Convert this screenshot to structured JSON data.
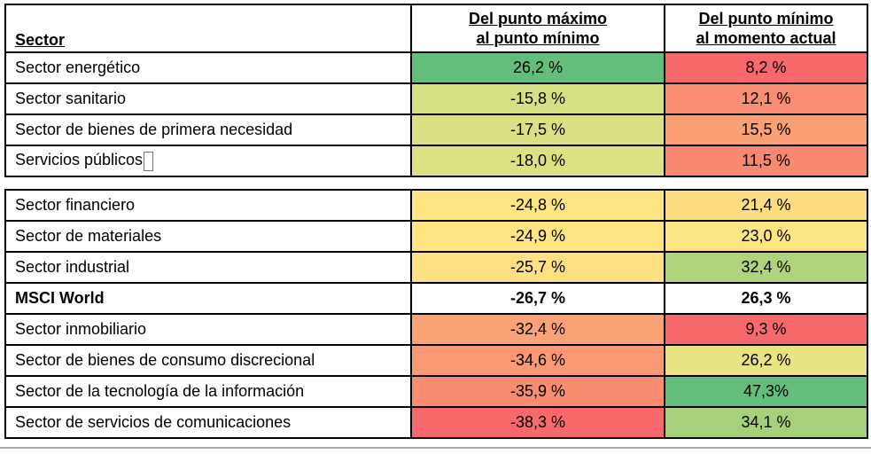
{
  "table": {
    "headers": {
      "sector": "Sector",
      "drawdown_line1": "Del punto máximo",
      "drawdown_line2": "al punto mínimo",
      "recovery_line1": "Del punto mínimo",
      "recovery_line2": "al momento actual"
    },
    "rows": [
      {
        "sector": "Sector energético",
        "drawdown": "26,2 %",
        "drawdown_bg": "#63BE7B",
        "recovery": "8,2 %",
        "recovery_bg": "#F8696B"
      },
      {
        "sector": "Sector sanitario",
        "drawdown": "-15,8 %",
        "drawdown_bg": "#D6DF81",
        "recovery": "12,1 %",
        "recovery_bg": "#FA8E72"
      },
      {
        "sector": "Sector de bienes de primera necesidad",
        "drawdown": "-17,5 %",
        "drawdown_bg": "#DBE082",
        "recovery": "15,5 %",
        "recovery_bg": "#FB9F75"
      },
      {
        "sector": "Servicios públicos",
        "drawdown": "-18,0 %",
        "drawdown_bg": "#DCE182",
        "recovery": "11,5 %",
        "recovery_bg": "#FA8770"
      },
      {
        "sector": "Sector financiero",
        "drawdown": "-24,8 %",
        "drawdown_bg": "#FEE482",
        "recovery": "21,4 %",
        "recovery_bg": "#FEDC80"
      },
      {
        "sector": "Sector de materiales",
        "drawdown": "-24,9 %",
        "drawdown_bg": "#FEE482",
        "recovery": "23,0 %",
        "recovery_bg": "#FEE583"
      },
      {
        "sector": "Sector industrial",
        "drawdown": "-25,7 %",
        "drawdown_bg": "#FEDF81",
        "recovery": "32,4 %",
        "recovery_bg": "#AFD47E"
      },
      {
        "sector": "MSCI World",
        "drawdown": "-26,7 %",
        "drawdown_bg": "#FFFFFF",
        "recovery": "26,3 %",
        "recovery_bg": "#FFFFFF"
      },
      {
        "sector": "Sector inmobiliario",
        "drawdown": "-32,4 %",
        "drawdown_bg": "#FBA376",
        "recovery": "9,3 %",
        "recovery_bg": "#F8696B"
      },
      {
        "sector": "Sector de bienes de consumo discrecional",
        "drawdown": "-34,6 %",
        "drawdown_bg": "#FA9974",
        "recovery": "26,2 %",
        "recovery_bg": "#E9E482"
      },
      {
        "sector": "Sector de la tecnología de la información",
        "drawdown": "-35,9 %",
        "drawdown_bg": "#F98B70",
        "recovery": "47,3%",
        "recovery_bg": "#63BE7B"
      },
      {
        "sector": "Sector de servicios de comunicaciones",
        "drawdown": "-38,3 %",
        "drawdown_bg": "#F8696B",
        "recovery": "34,1 %",
        "recovery_bg": "#A5D17D"
      }
    ]
  },
  "chart_data": {
    "type": "table",
    "title": "",
    "columns": [
      "Sector",
      "Del punto máximo al punto mínimo",
      "Del punto mínimo al momento actual"
    ],
    "rows": [
      [
        "Sector energético",
        26.2,
        8.2
      ],
      [
        "Sector sanitario",
        -15.8,
        12.1
      ],
      [
        "Sector de bienes de primera necesidad",
        -17.5,
        15.5
      ],
      [
        "Servicios públicos",
        -18.0,
        11.5
      ],
      [
        "Sector financiero",
        -24.8,
        21.4
      ],
      [
        "Sector de materiales",
        -24.9,
        23.0
      ],
      [
        "Sector industrial",
        -25.7,
        32.4
      ],
      [
        "MSCI World",
        -26.7,
        26.3
      ],
      [
        "Sector inmobiliario",
        -32.4,
        9.3
      ],
      [
        "Sector de bienes de consumo discrecional",
        -34.6,
        26.2
      ],
      [
        "Sector de la tecnología de la información",
        -35.9,
        47.3
      ],
      [
        "Sector de servicios de comunicaciones",
        -38.3,
        34.1
      ]
    ],
    "units": "%",
    "color_scale": {
      "style": "red-yellow-green 3-color scale (heatmap per column)",
      "red": "#F8696B",
      "yellow": "#FFEB84",
      "green": "#63BE7B",
      "neutral_row": "MSCI World (white, bold)"
    }
  }
}
